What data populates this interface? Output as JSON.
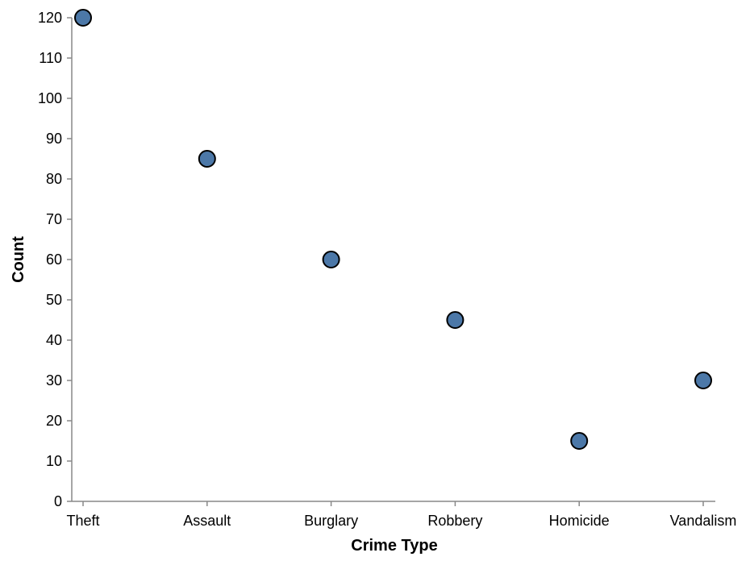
{
  "chart_data": {
    "type": "scatter",
    "categories": [
      "Theft",
      "Assault",
      "Burglary",
      "Robbery",
      "Homicide",
      "Vandalism"
    ],
    "values": [
      120,
      85,
      60,
      45,
      15,
      30
    ],
    "xlabel": "Crime Type",
    "ylabel": "Count",
    "ylim": [
      0,
      120
    ],
    "yticks": [
      0,
      10,
      20,
      30,
      40,
      50,
      60,
      70,
      80,
      90,
      100,
      110,
      120
    ],
    "grid": false,
    "point_color": "#4c78a8",
    "point_outline_color": "#000000",
    "axis_color": "#888888"
  }
}
